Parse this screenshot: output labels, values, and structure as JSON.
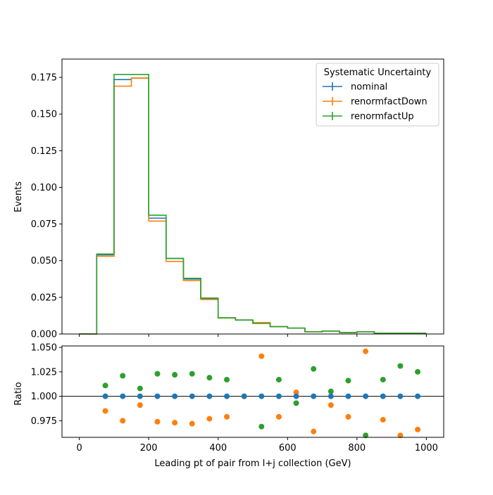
{
  "chart_data": {
    "type": "step-histogram-with-ratio",
    "xlabel": "Leading pt of pair from l+j collection (GeV)",
    "xlim": [
      -50,
      1050
    ],
    "x_ticks": [
      0,
      200,
      400,
      600,
      800,
      1000
    ],
    "main": {
      "ylabel": "Events",
      "ylim": [
        0,
        0.1875
      ],
      "y_ticks": [
        "0.000",
        "0.025",
        "0.050",
        "0.075",
        "0.100",
        "0.125",
        "0.150",
        "0.175"
      ],
      "y_tick_values": [
        0,
        0.025,
        0.05,
        0.075,
        0.1,
        0.125,
        0.15,
        0.175
      ],
      "bin_edges": [
        0,
        50,
        100,
        150,
        200,
        250,
        300,
        350,
        400,
        450,
        500,
        550,
        600,
        650,
        700,
        750,
        800,
        850,
        900,
        950,
        1000
      ],
      "series": [
        {
          "name": "nominal",
          "color": "#1f77b4",
          "values": [
            0.0,
            0.054,
            0.1735,
            0.1745,
            0.079,
            0.0515,
            0.0375,
            0.024,
            0.011,
            0.0095,
            0.0075,
            0.005,
            0.004,
            0.0015,
            0.002,
            0.001,
            0.0015,
            0.0005,
            0.0005,
            0.0005
          ]
        },
        {
          "name": "renormfactDown",
          "color": "#ff7f0e",
          "values": [
            0.0,
            0.053,
            0.169,
            0.1745,
            0.077,
            0.0495,
            0.0365,
            0.0235,
            0.011,
            0.0095,
            0.0078,
            0.005,
            0.004,
            0.0015,
            0.002,
            0.001,
            0.0015,
            0.0005,
            0.0005,
            0.0005
          ]
        },
        {
          "name": "renormfactUp",
          "color": "#2ca02c",
          "values": [
            0.0,
            0.0545,
            0.177,
            0.177,
            0.081,
            0.0515,
            0.038,
            0.0245,
            0.011,
            0.0095,
            0.0072,
            0.005,
            0.004,
            0.0015,
            0.002,
            0.001,
            0.0015,
            0.0005,
            0.0005,
            0.0005
          ]
        }
      ],
      "legend": {
        "title": "Systematic Uncertainty",
        "placement": "top-right"
      }
    },
    "ratio": {
      "ylabel": "Ratio",
      "ylim": [
        0.958,
        1.0515
      ],
      "y_ticks": [
        "0.975",
        "1.000",
        "1.025",
        "1.050"
      ],
      "y_tick_values": [
        0.975,
        1.0,
        1.025,
        1.05
      ],
      "reference_line": 1.0,
      "x": [
        75,
        125,
        175,
        225,
        275,
        325,
        375,
        425,
        475,
        525,
        575,
        625,
        675,
        725,
        775,
        825,
        875,
        925,
        975
      ],
      "series": [
        {
          "name": "nominal",
          "color": "#1f77b4",
          "values": [
            1.0,
            1.0,
            1.0,
            1.0,
            1.0,
            1.0,
            1.0,
            1.0,
            1.0,
            1.0,
            1.0,
            1.0,
            1.0,
            1.0,
            1.0,
            1.0,
            1.0,
            1.0,
            1.0
          ]
        },
        {
          "name": "renormfactDown",
          "color": "#ff7f0e",
          "values": [
            0.985,
            0.975,
            0.991,
            0.974,
            0.973,
            0.972,
            0.977,
            0.979,
            1.0,
            1.041,
            0.979,
            1.004,
            0.964,
            0.991,
            0.979,
            1.046,
            0.976,
            0.96,
            0.966
          ]
        },
        {
          "name": "renormfactUp",
          "color": "#2ca02c",
          "values": [
            1.011,
            1.021,
            1.008,
            1.023,
            1.022,
            1.023,
            1.019,
            1.017,
            1.0,
            0.969,
            1.017,
            0.993,
            1.028,
            1.005,
            1.016,
            0.96,
            1.017,
            1.031,
            1.025
          ]
        }
      ]
    }
  }
}
